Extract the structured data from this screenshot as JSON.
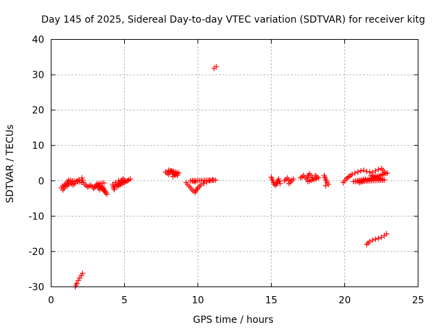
{
  "chart_data": {
    "type": "scatter",
    "title": "Day 145 of 2025, Sidereal Day-to-day VTEC variation (SDTVAR) for receiver kitg",
    "xlabel": "GPS time / hours",
    "ylabel": "SDTVAR / TECUs",
    "xlim": [
      0,
      25
    ],
    "ylim": [
      -30,
      40
    ],
    "xticks": [
      0,
      5,
      10,
      15,
      20,
      25
    ],
    "yticks": [
      -30,
      -20,
      -10,
      0,
      10,
      20,
      30,
      40
    ],
    "grid": true,
    "marker": "plus",
    "series": [
      {
        "name": "SDTVAR",
        "color": "#ff0000",
        "segments": [
          [
            [
              0.7,
              -2.0
            ],
            [
              0.9,
              -1.0
            ],
            [
              1.1,
              -1.5
            ],
            [
              1.3,
              -0.5
            ],
            [
              1.5,
              -1.2
            ],
            [
              1.7,
              -0.3
            ],
            [
              1.9,
              0.3
            ],
            [
              2.1,
              0.8
            ],
            [
              2.2,
              -0.5
            ],
            [
              1.2,
              0.2
            ],
            [
              0.8,
              -2.6
            ]
          ],
          [
            [
              2.3,
              -1.0
            ],
            [
              2.5,
              -1.8
            ],
            [
              2.7,
              -1.2
            ],
            [
              2.9,
              -2.2
            ],
            [
              3.1,
              -1.0
            ],
            [
              3.3,
              -2.5
            ],
            [
              3.5,
              -1.8
            ],
            [
              3.7,
              -3.0
            ],
            [
              3.8,
              -3.8
            ],
            [
              3.2,
              -0.8
            ],
            [
              3.6,
              -0.6
            ]
          ],
          [
            [
              4.2,
              -1.0
            ],
            [
              4.3,
              -2.5
            ],
            [
              4.4,
              -0.5
            ],
            [
              4.6,
              0.0
            ],
            [
              4.8,
              -0.2
            ],
            [
              5.0,
              0.2
            ],
            [
              5.2,
              0.0
            ],
            [
              5.4,
              0.5
            ],
            [
              4.5,
              -1.6
            ],
            [
              4.9,
              0.6
            ]
          ],
          [
            [
              1.65,
              -30.0
            ],
            [
              1.75,
              -29.0
            ],
            [
              1.85,
              -28.2
            ],
            [
              1.95,
              -27.5
            ],
            [
              2.05,
              -26.8
            ],
            [
              2.15,
              -26.2
            ]
          ],
          [
            [
              7.8,
              2.5
            ],
            [
              8.0,
              1.8
            ],
            [
              8.2,
              2.8
            ],
            [
              8.4,
              2.0
            ],
            [
              8.6,
              1.5
            ],
            [
              8.0,
              3.0
            ],
            [
              8.7,
              2.2
            ],
            [
              8.3,
              1.2
            ]
          ],
          [
            [
              9.2,
              -0.5
            ],
            [
              9.4,
              -1.5
            ],
            [
              9.6,
              -2.5
            ],
            [
              9.8,
              -3.3
            ],
            [
              10.0,
              -2.0
            ],
            [
              10.2,
              -1.2
            ],
            [
              10.4,
              -0.8
            ],
            [
              10.6,
              -0.3
            ],
            [
              10.8,
              0.0
            ],
            [
              11.0,
              0.3
            ],
            [
              11.2,
              0.2
            ],
            [
              9.5,
              0.0
            ],
            [
              9.8,
              -0.3
            ]
          ],
          [
            [
              11.1,
              31.8
            ],
            [
              11.25,
              32.3
            ]
          ],
          [
            [
              15.0,
              1.0
            ],
            [
              15.1,
              0.0
            ],
            [
              15.2,
              -1.0
            ],
            [
              15.4,
              -0.5
            ],
            [
              15.6,
              -0.8
            ],
            [
              15.5,
              0.5
            ],
            [
              15.3,
              -1.3
            ]
          ],
          [
            [
              15.9,
              0.0
            ],
            [
              16.1,
              0.8
            ],
            [
              16.3,
              -0.3
            ],
            [
              16.5,
              0.5
            ],
            [
              16.2,
              -0.8
            ]
          ],
          [
            [
              17.0,
              0.8
            ],
            [
              17.2,
              1.5
            ],
            [
              17.4,
              0.5
            ],
            [
              17.6,
              2.0
            ],
            [
              17.8,
              1.0
            ],
            [
              18.0,
              1.5
            ],
            [
              18.2,
              0.8
            ],
            [
              17.5,
              -0.2
            ]
          ],
          [
            [
              18.6,
              1.5
            ],
            [
              18.7,
              0.5
            ],
            [
              18.8,
              -0.5
            ],
            [
              18.9,
              -1.0
            ],
            [
              18.7,
              -1.4
            ]
          ],
          [
            [
              19.9,
              -0.5
            ],
            [
              20.1,
              0.5
            ],
            [
              20.3,
              1.2
            ],
            [
              20.5,
              1.8
            ],
            [
              20.7,
              2.2
            ],
            [
              20.9,
              2.5
            ],
            [
              21.1,
              2.8
            ],
            [
              21.3,
              3.0
            ],
            [
              21.5,
              2.6
            ],
            [
              21.7,
              2.5
            ],
            [
              21.9,
              2.3
            ],
            [
              22.1,
              2.8
            ],
            [
              22.3,
              3.2
            ],
            [
              22.5,
              3.5
            ],
            [
              22.7,
              2.5
            ],
            [
              22.9,
              2.2
            ],
            [
              21.0,
              -0.5
            ],
            [
              21.4,
              0.5
            ],
            [
              20.6,
              -0.2
            ],
            [
              22.7,
              0.2
            ],
            [
              21.8,
              1.5
            ]
          ],
          [
            [
              21.5,
              -18.0
            ],
            [
              21.7,
              -17.2
            ],
            [
              21.9,
              -16.8
            ],
            [
              22.1,
              -16.5
            ],
            [
              22.3,
              -16.3
            ],
            [
              22.5,
              -16.0
            ],
            [
              22.7,
              -15.5
            ],
            [
              22.85,
              -15.0
            ]
          ]
        ]
      }
    ]
  }
}
